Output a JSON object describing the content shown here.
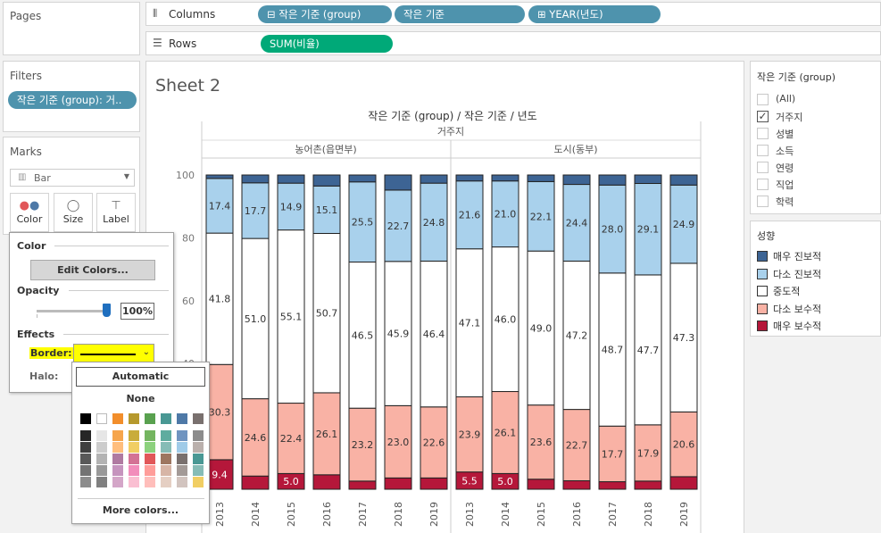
{
  "pages": {
    "title": "Pages"
  },
  "filters": {
    "title": "Filters",
    "pill": "작은 기준 (group): 거.."
  },
  "marks": {
    "title": "Marks",
    "type": "Bar",
    "buttons": {
      "color": "Color",
      "size": "Size",
      "label": "Label"
    }
  },
  "columns": {
    "label": "Columns",
    "pills": [
      "작은 기준 (group)",
      "작은 기준",
      "YEAR(년도)"
    ]
  },
  "rows": {
    "label": "Rows",
    "pill": "SUM(비율)"
  },
  "sheet": {
    "title": "Sheet 2",
    "header_top": "작은 기준 (group) / 작은 기준 / 년도",
    "header_group": "거주지",
    "sub_groups": [
      "농어촌(읍면부)",
      "도시(동부)"
    ]
  },
  "chart_data": {
    "type": "bar",
    "stacked": true,
    "categories": [
      "2013",
      "2014",
      "2015",
      "2016",
      "2017",
      "2018",
      "2019",
      "2013",
      "2014",
      "2015",
      "2016",
      "2017",
      "2018",
      "2019"
    ],
    "panels": [
      "농어촌(읍면부)",
      "도시(동부)"
    ],
    "yticks": [
      "100",
      "80",
      "60",
      "40"
    ],
    "ylim": [
      0,
      100
    ],
    "series": [
      {
        "name": "매우 보수적",
        "color": "#b5173a",
        "values": [
          9.4,
          4.2,
          5.0,
          4.6,
          2.6,
          3.6,
          3.6,
          5.5,
          5.0,
          3.2,
          2.7,
          2.4,
          2.6,
          4.0
        ]
      },
      {
        "name": "다소 보수적",
        "color": "#f9b2a5",
        "values": [
          30.3,
          24.6,
          22.4,
          26.1,
          23.2,
          23.0,
          22.6,
          23.9,
          26.1,
          23.6,
          22.7,
          17.7,
          17.9,
          20.6
        ]
      },
      {
        "name": "중도적",
        "color": "#ffffff",
        "values": [
          41.8,
          51.0,
          55.1,
          50.7,
          46.5,
          45.9,
          46.4,
          47.1,
          46.0,
          49.0,
          47.2,
          48.7,
          47.7,
          47.3
        ]
      },
      {
        "name": "다소 진보적",
        "color": "#a9d1ec",
        "values": [
          17.4,
          17.7,
          14.9,
          15.1,
          25.5,
          22.7,
          24.8,
          21.6,
          21.0,
          22.1,
          24.4,
          28.0,
          29.1,
          24.9
        ]
      },
      {
        "name": "매우 진보적",
        "color": "#3d6494",
        "values": [
          1.1,
          2.5,
          2.6,
          3.5,
          2.2,
          4.8,
          2.6,
          1.9,
          1.9,
          2.1,
          3.0,
          3.2,
          2.7,
          3.2
        ]
      }
    ],
    "labels": {
      "매우 보수적": [
        "9.4",
        "",
        "5.0",
        "",
        "",
        "",
        "",
        "5.5",
        "5.0",
        "",
        "",
        "",
        "",
        ""
      ],
      "다소 보수적": [
        "30.3",
        "24.6",
        "22.4",
        "26.1",
        "23.2",
        "23.0",
        "22.6",
        "23.9",
        "26.1",
        "23.6",
        "22.7",
        "17.7",
        "17.9",
        "20.6"
      ],
      "중도적": [
        "41.8",
        "51.0",
        "55.1",
        "50.7",
        "46.5",
        "45.9",
        "46.4",
        "47.1",
        "46.0",
        "49.0",
        "47.2",
        "48.7",
        "47.7",
        "47.3"
      ],
      "다소 진보적": [
        "17.4",
        "17.7",
        "14.9",
        "15.1",
        "25.5",
        "22.7",
        "24.8",
        "21.6",
        "21.0",
        "22.1",
        "24.4",
        "28.0",
        "29.1",
        "24.9"
      ]
    }
  },
  "filter_card": {
    "title": "작은 기준 (group)",
    "items": [
      {
        "label": "(All)",
        "checked": false
      },
      {
        "label": "거주지",
        "checked": true
      },
      {
        "label": "성별",
        "checked": false
      },
      {
        "label": "소득",
        "checked": false
      },
      {
        "label": "연령",
        "checked": false
      },
      {
        "label": "직업",
        "checked": false
      },
      {
        "label": "학력",
        "checked": false
      }
    ]
  },
  "legend": {
    "title": "성향",
    "items": [
      {
        "label": "매우 진보적",
        "color": "#3d6494"
      },
      {
        "label": "다소 진보적",
        "color": "#a9d1ec"
      },
      {
        "label": "중도적",
        "color": "#ffffff"
      },
      {
        "label": "다소 보수적",
        "color": "#f9b2a5"
      },
      {
        "label": "매우 보수적",
        "color": "#b5173a"
      }
    ]
  },
  "color_popup": {
    "color_label": "Color",
    "edit_colors": "Edit Colors...",
    "opacity_label": "Opacity",
    "opacity_value": "100%",
    "effects_label": "Effects",
    "border_label": "Border:",
    "halo_label": "Halo:",
    "accent": "#ffff00"
  },
  "border_dropdown": {
    "automatic": "Automatic",
    "none": "None",
    "more_colors": "More colors...",
    "palette": [
      [
        "#000000",
        "#ffffff",
        "#f28e2b",
        "#b6992d",
        "#59a14f",
        "#499894",
        "#4e79a7",
        "#79706e"
      ],
      [
        "#262626",
        "#e6e6e6",
        "#f6a54c",
        "#c9ac3a",
        "#74b560",
        "#5fac9f",
        "#6f94c0",
        "#8c8c8c"
      ],
      [
        "#404040",
        "#cccccc",
        "#ffbe7d",
        "#f1ce63",
        "#8cd17d",
        "#86bcb6",
        "#a0cbe8",
        "#bab0ac"
      ],
      [
        "#595959",
        "#b3b3b3",
        "#b07aa1",
        "#d37295",
        "#e15759",
        "#9d7660",
        "#79706e",
        "#499894"
      ],
      [
        "#737373",
        "#999999",
        "#c694be",
        "#f28dbb",
        "#ff9d9a",
        "#d7b5a6",
        "#a39a97",
        "#86bcb6"
      ],
      [
        "#8c8c8c",
        "#808080",
        "#d4a6c8",
        "#fabfd2",
        "#ffbebb",
        "#e5cfc3",
        "#d2c4bf",
        "#f1ce63"
      ]
    ]
  }
}
